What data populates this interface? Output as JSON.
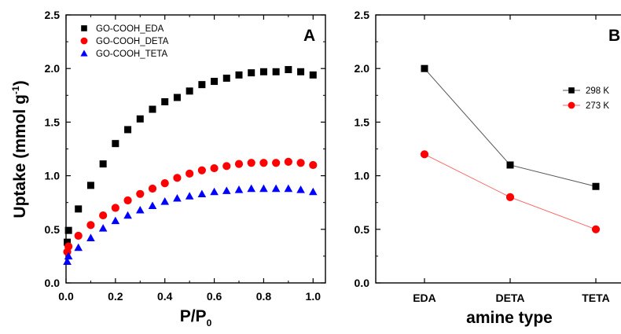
{
  "chart_data": [
    {
      "type": "scatter",
      "panel_label": "A",
      "xlabel": "P/P",
      "xlabel_sub": "0",
      "ylabel": "Uptake (mmol g",
      "ylabel_sup": "-1",
      "ylabel_end": ")",
      "xlim": [
        0.0,
        1.05
      ],
      "ylim": [
        0.0,
        2.5
      ],
      "xticks": [
        "0.0",
        "0.2",
        "0.4",
        "0.6",
        "0.8",
        "1.0"
      ],
      "xtick_values": [
        0.0,
        0.2,
        0.4,
        0.6,
        0.8,
        1.0
      ],
      "yticks": [
        "0.0",
        "0.5",
        "1.0",
        "1.5",
        "2.0",
        "2.5"
      ],
      "ytick_values": [
        0.0,
        0.5,
        1.0,
        1.5,
        2.0,
        2.5
      ],
      "grid": false,
      "legend_position": "top-left",
      "series": [
        {
          "name": "GO-COOH_EDA",
          "marker": "square",
          "color": "#000000",
          "x": [
            0.005,
            0.01,
            0.05,
            0.1,
            0.15,
            0.2,
            0.25,
            0.3,
            0.35,
            0.4,
            0.45,
            0.5,
            0.55,
            0.6,
            0.65,
            0.7,
            0.75,
            0.8,
            0.85,
            0.9,
            0.95,
            1.0
          ],
          "y": [
            0.38,
            0.49,
            0.69,
            0.91,
            1.11,
            1.3,
            1.43,
            1.53,
            1.62,
            1.69,
            1.73,
            1.79,
            1.85,
            1.88,
            1.91,
            1.94,
            1.96,
            1.97,
            1.97,
            1.99,
            1.97,
            1.94
          ]
        },
        {
          "name": "GO-COOH_DETA",
          "marker": "circle",
          "color": "#ff0000",
          "x": [
            0.005,
            0.01,
            0.05,
            0.1,
            0.15,
            0.2,
            0.25,
            0.3,
            0.35,
            0.4,
            0.45,
            0.5,
            0.55,
            0.6,
            0.65,
            0.7,
            0.75,
            0.8,
            0.85,
            0.9,
            0.95,
            1.0
          ],
          "y": [
            0.29,
            0.34,
            0.44,
            0.54,
            0.63,
            0.7,
            0.77,
            0.83,
            0.88,
            0.93,
            0.98,
            1.02,
            1.05,
            1.07,
            1.09,
            1.11,
            1.12,
            1.12,
            1.12,
            1.13,
            1.12,
            1.1
          ]
        },
        {
          "name": "GO-COOH_TETA",
          "marker": "triangle",
          "color": "#0000ff",
          "x": [
            0.005,
            0.01,
            0.05,
            0.1,
            0.15,
            0.2,
            0.25,
            0.3,
            0.35,
            0.4,
            0.45,
            0.5,
            0.55,
            0.6,
            0.65,
            0.7,
            0.75,
            0.8,
            0.85,
            0.9,
            0.95,
            1.0
          ],
          "y": [
            0.2,
            0.25,
            0.33,
            0.42,
            0.51,
            0.58,
            0.63,
            0.68,
            0.72,
            0.76,
            0.79,
            0.81,
            0.83,
            0.85,
            0.86,
            0.87,
            0.88,
            0.88,
            0.88,
            0.88,
            0.87,
            0.85
          ]
        }
      ]
    },
    {
      "type": "line",
      "panel_label": "B",
      "xlabel": "amine type",
      "ylabel": "",
      "categories": [
        "EDA",
        "DETA",
        "TETA"
      ],
      "ylim": [
        0.0,
        2.5
      ],
      "yticks": [
        "0.0",
        "0.5",
        "1.0",
        "1.5",
        "2.0",
        "2.5"
      ],
      "ytick_values": [
        0.0,
        0.5,
        1.0,
        1.5,
        2.0,
        2.5
      ],
      "grid": false,
      "legend_position": "right",
      "series": [
        {
          "name": "298 K",
          "marker": "square",
          "color": "#000000",
          "line_color": "#555555",
          "values": [
            2.0,
            1.1,
            0.9
          ]
        },
        {
          "name": "273 K",
          "marker": "circle",
          "color": "#ff0000",
          "line_color": "#ff6666",
          "values": [
            1.2,
            0.8,
            0.5
          ]
        }
      ]
    }
  ]
}
